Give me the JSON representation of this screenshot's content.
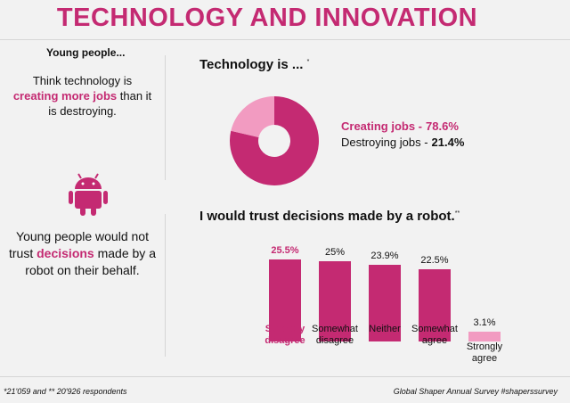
{
  "header": {
    "title": "TECHNOLOGY AND INNOVATION"
  },
  "left": {
    "intro": "Young people...",
    "statement1": [
      "Think technology is ",
      "creating more jobs",
      " than it is destroying."
    ],
    "statement2": [
      "Young people would not trust ",
      "decisions",
      " made by a robot on their behalf."
    ]
  },
  "footer": {
    "respondents": "*21'059 and ** 20'926 respondents",
    "source": "Global Shaper Annual Survey #shaperssurvey"
  },
  "chart_data": [
    {
      "type": "pie",
      "title": "Technology is ...",
      "title_note": "*",
      "categories": [
        "Creating jobs -",
        "Destroying jobs -"
      ],
      "values": [
        78.6,
        21.4
      ],
      "value_labels": [
        "78.6%",
        "21.4%"
      ],
      "colors": [
        "#c42a72",
        "#f29bc1"
      ]
    },
    {
      "type": "bar",
      "title": "I would trust decisions made by a robot.",
      "title_note": "**",
      "categories": [
        "Strongly disagree",
        "Somewhat disagree",
        "Neither",
        "Somewhat agree",
        "Strongly agree"
      ],
      "values": [
        25.5,
        25,
        23.9,
        22.5,
        3.1
      ],
      "value_labels": [
        "25.5%",
        "25%",
        "23.9%",
        "22.5%",
        "3.1%"
      ],
      "colors": [
        "#c42a72",
        "#c42a72",
        "#c42a72",
        "#c42a72",
        "#f29bc1"
      ]
    }
  ]
}
